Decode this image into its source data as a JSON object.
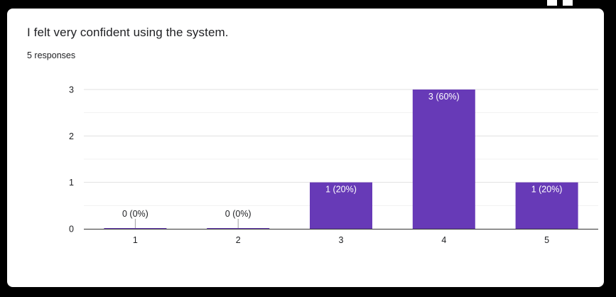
{
  "card": {
    "title": "I felt very confident using the system.",
    "responses": "5 responses"
  },
  "colors": {
    "bar": "#673ab7",
    "grid": "#e0e0e0",
    "baseline": "#333333",
    "text": "#202124"
  },
  "chart_data": {
    "type": "bar",
    "categories": [
      "1",
      "2",
      "3",
      "4",
      "5"
    ],
    "values": [
      0,
      0,
      1,
      3,
      1
    ],
    "data_labels": [
      "0 (0%)",
      "0 (0%)",
      "1 (20%)",
      "3 (60%)",
      "1 (20%)"
    ],
    "y_ticks": [
      0,
      1,
      2,
      3
    ],
    "ylim": [
      0,
      3
    ],
    "title": "",
    "xlabel": "",
    "ylabel": "",
    "grid": true,
    "legend": "none"
  }
}
